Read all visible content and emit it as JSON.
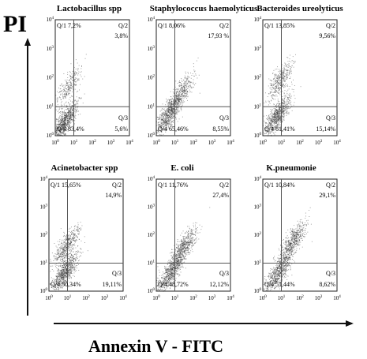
{
  "figure": {
    "y_axis_title": "PI",
    "x_axis_title": "Annexin V - FITC"
  },
  "chart_data": [
    {
      "type": "scatter",
      "title": "Lactobacillus spp",
      "quadrants": {
        "Q1": "7,2%",
        "Q2": "3,8%",
        "Q3": "5,6%",
        "Q4": "83,4%"
      },
      "xlim": [
        1,
        10000
      ],
      "ylim": [
        1,
        10000
      ],
      "log_scale": true,
      "ticks": [
        "0",
        "1",
        "2",
        "3",
        "4"
      ],
      "gates": {
        "x": 10,
        "y": 10
      },
      "clusters": [
        {
          "x": 3,
          "y": 3,
          "n": 900
        },
        {
          "x": 5,
          "y": 50,
          "n": 300
        }
      ]
    },
    {
      "type": "scatter",
      "title": "Staphylococcus haemolyticus",
      "quadrants": {
        "Q1": "8,06%",
        "Q2": "17,93 %",
        "Q3": "8,55%",
        "Q4": "65,46%"
      },
      "xlim": [
        1,
        10000
      ],
      "ylim": [
        1,
        10000
      ],
      "log_scale": true,
      "ticks": [
        "0",
        "1",
        "2",
        "3",
        "4"
      ],
      "gates": {
        "x": 10,
        "y": 10
      },
      "clusters": [
        {
          "x": 5,
          "y": 6,
          "n": 800
        },
        {
          "x": 20,
          "y": 30,
          "n": 400
        }
      ]
    },
    {
      "type": "scatter",
      "title": "Bacteroides ureolyticus",
      "quadrants": {
        "Q1": "13,85%",
        "Q2": "9,56%",
        "Q3": "15,14%",
        "Q4": "61,41%"
      },
      "xlim": [
        1,
        10000
      ],
      "ylim": [
        1,
        10000
      ],
      "log_scale": true,
      "ticks": [
        "0",
        "1",
        "2",
        "3",
        "4"
      ],
      "gates": {
        "x": 10,
        "y": 10
      },
      "clusters": [
        {
          "x": 6,
          "y": 5,
          "n": 800
        },
        {
          "x": 8,
          "y": 80,
          "n": 400
        }
      ]
    },
    {
      "type": "scatter",
      "title": "Acinetobacter spp",
      "quadrants": {
        "Q1": "15,65%",
        "Q2": "14,9%",
        "Q3": "19,11%",
        "Q4": "50,34%"
      },
      "xlim": [
        1,
        10000
      ],
      "ylim": [
        1,
        10000
      ],
      "log_scale": true,
      "ticks": [
        "0",
        "1",
        "2",
        "3",
        "4"
      ],
      "gates": {
        "x": 10,
        "y": 10
      },
      "clusters": [
        {
          "x": 7,
          "y": 5,
          "n": 800
        },
        {
          "x": 8,
          "y": 40,
          "n": 500
        }
      ]
    },
    {
      "type": "scatter",
      "title": "E. coli",
      "quadrants": {
        "Q1": "11,76%",
        "Q2": "27,4%",
        "Q3": "12,12%",
        "Q4": "48,72%"
      },
      "xlim": [
        1,
        10000
      ],
      "ylim": [
        1,
        10000
      ],
      "log_scale": true,
      "ticks": [
        "0",
        "1",
        "2",
        "3",
        "4"
      ],
      "gates": {
        "x": 10,
        "y": 10
      },
      "clusters": [
        {
          "x": 6,
          "y": 5,
          "n": 700
        },
        {
          "x": 30,
          "y": 40,
          "n": 600
        }
      ]
    },
    {
      "type": "scatter",
      "title": "K.pneumonie",
      "quadrants": {
        "Q1": "10,84%",
        "Q2": "29,1%",
        "Q3": "8,62%",
        "Q4": "51,44%"
      },
      "xlim": [
        1,
        10000
      ],
      "ylim": [
        1,
        10000
      ],
      "log_scale": true,
      "ticks": [
        "0",
        "1",
        "2",
        "3",
        "4"
      ],
      "gates": {
        "x": 10,
        "y": 10
      },
      "clusters": [
        {
          "x": 7,
          "y": 5,
          "n": 700
        },
        {
          "x": 40,
          "y": 60,
          "n": 600
        }
      ]
    }
  ]
}
